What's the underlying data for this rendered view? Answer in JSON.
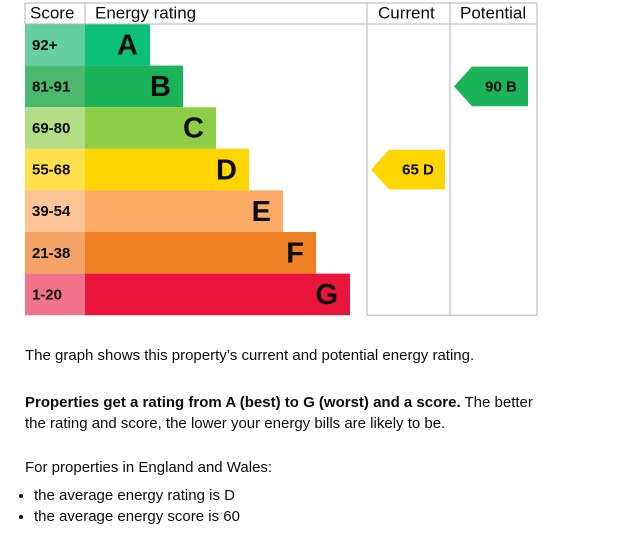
{
  "table": {
    "headers": [
      "Score",
      "Energy rating",
      "Current",
      "Potential"
    ],
    "bands": [
      {
        "score": "92+",
        "rating": "A"
      },
      {
        "score": "81-91",
        "rating": "B"
      },
      {
        "score": "69-80",
        "rating": "C"
      },
      {
        "score": "55-68",
        "rating": "D"
      },
      {
        "score": "39-54",
        "rating": "E"
      },
      {
        "score": "21-38",
        "rating": "F"
      },
      {
        "score": "1-20",
        "rating": "G"
      }
    ],
    "current": {
      "score": 65,
      "rating": "D"
    },
    "potential": {
      "score": 90,
      "rating": "B"
    }
  },
  "text": {
    "intro": "The graph shows this property’s current and potential energy rating.",
    "rating_bold": "Properties get a rating from A (best) to G (worst) and a score.",
    "rating_rest": " The better the rating and score, the lower your energy bills are likely to be.",
    "region": "For properties in England and Wales:",
    "bullets": [
      "the average energy rating is D",
      "the average energy score is 60"
    ]
  }
}
